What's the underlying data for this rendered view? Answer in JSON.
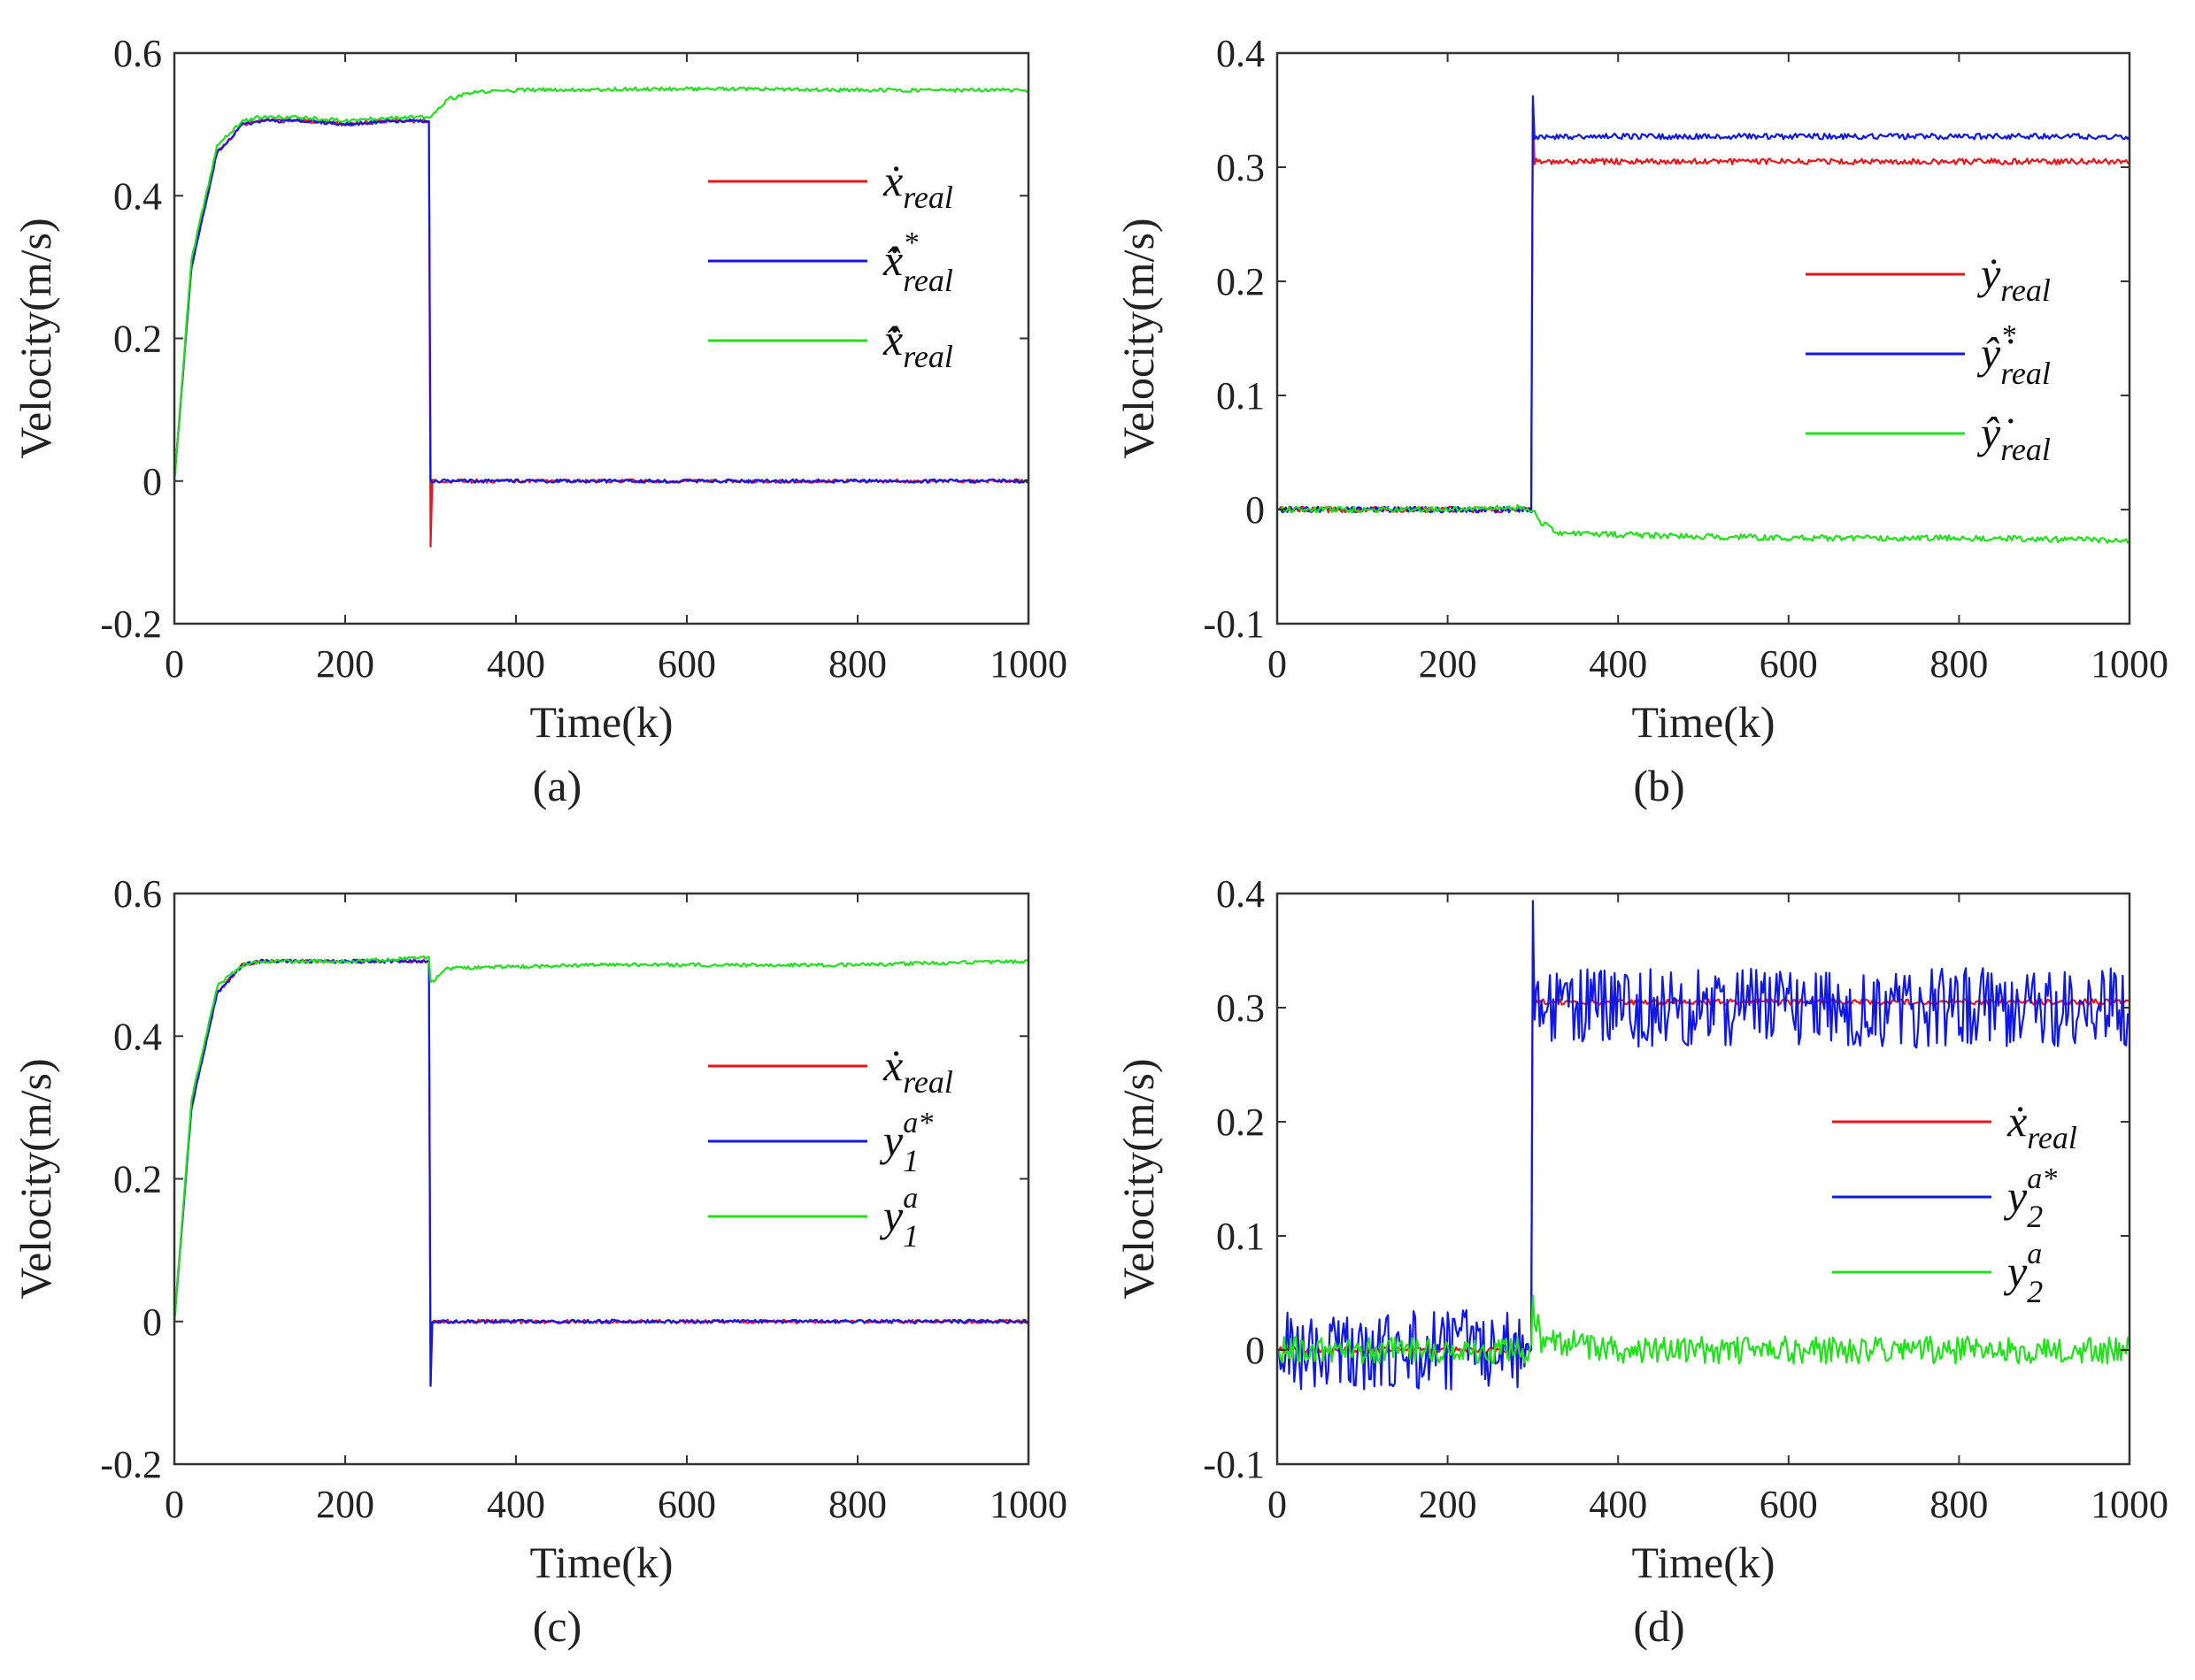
{
  "figure": {
    "panels": [
      {
        "id": "a",
        "caption": "(a)"
      },
      {
        "id": "b",
        "caption": "(b)"
      },
      {
        "id": "c",
        "caption": "(c)"
      },
      {
        "id": "d",
        "caption": "(d)"
      }
    ]
  },
  "chart_data": [
    {
      "type": "line",
      "panel": "(a)",
      "xlabel": "Time(k)",
      "ylabel": "Velocity(m/s)",
      "xlim": [
        0,
        1000
      ],
      "ylim": [
        -0.2,
        0.6
      ],
      "xticks": [
        0,
        200,
        400,
        600,
        800,
        1000
      ],
      "yticks": [
        -0.2,
        0,
        0.2,
        0.4,
        0.6
      ],
      "ytick_labels": [
        "-0.2",
        "0",
        "0.2",
        "0.4",
        "0.6"
      ],
      "legend_position": "right",
      "series": [
        {
          "name": "ẋreal",
          "legend": {
            "base": "ẋ",
            "sub": "real",
            "sup": ""
          },
          "color": "#e8161b",
          "x": [
            0,
            20,
            50,
            80,
            100,
            150,
            200,
            250,
            298,
            300,
            302,
            310,
            500,
            1000
          ],
          "y": [
            0.0,
            0.3,
            0.46,
            0.5,
            0.505,
            0.505,
            0.5,
            0.505,
            0.505,
            -0.09,
            0.0,
            0.0,
            0.0,
            0.0
          ]
        },
        {
          "name": "x̂̇*real",
          "legend": {
            "base": "x̂̇",
            "sub": "real",
            "sup": "*"
          },
          "color": "#1018e8",
          "x": [
            0,
            20,
            50,
            80,
            100,
            150,
            200,
            250,
            298,
            300,
            302,
            310,
            500,
            1000
          ],
          "y": [
            0.0,
            0.3,
            0.46,
            0.5,
            0.505,
            0.505,
            0.5,
            0.505,
            0.505,
            0.0,
            0.0,
            0.0,
            0.0,
            0.0
          ]
        },
        {
          "name": "x̂̇real",
          "legend": {
            "base": "x̂̇",
            "sub": "real",
            "sup": ""
          },
          "color": "#22e01c",
          "x": [
            0,
            20,
            50,
            80,
            100,
            150,
            200,
            250,
            300,
            320,
            350,
            400,
            600,
            800,
            1000
          ],
          "y": [
            0.0,
            0.31,
            0.47,
            0.505,
            0.51,
            0.51,
            0.505,
            0.51,
            0.51,
            0.535,
            0.545,
            0.548,
            0.55,
            0.548,
            0.548
          ]
        }
      ]
    },
    {
      "type": "line",
      "panel": "(b)",
      "xlabel": "Time(k)",
      "ylabel": "Velocity(m/s)",
      "xlim": [
        0,
        1000
      ],
      "ylim": [
        -0.1,
        0.4
      ],
      "xticks": [
        0,
        200,
        400,
        600,
        800,
        1000
      ],
      "yticks": [
        -0.1,
        0,
        0.1,
        0.2,
        0.3,
        0.4
      ],
      "ytick_labels": [
        "-0.1",
        "0",
        "0.1",
        "0.2",
        "0.3",
        "0.4"
      ],
      "legend_position": "right",
      "series": [
        {
          "name": "ẏreal",
          "legend": {
            "base": "ẏ",
            "sub": "real",
            "sup": ""
          },
          "color": "#e8161b",
          "x": [
            0,
            298,
            300,
            302,
            310,
            500,
            1000
          ],
          "y": [
            0.0,
            0.0,
            0.355,
            0.305,
            0.305,
            0.305,
            0.305
          ]
        },
        {
          "name": "ŷ̇*real",
          "legend": {
            "base": "ŷ̇",
            "sub": "real",
            "sup": "*"
          },
          "color": "#1018e8",
          "x": [
            0,
            298,
            300,
            302,
            310,
            500,
            1000
          ],
          "y": [
            0.0,
            0.0,
            0.36,
            0.325,
            0.327,
            0.327,
            0.327
          ]
        },
        {
          "name": "ŷ̇real",
          "legend": {
            "base": "ŷ̇",
            "sub": "real",
            "sup": ""
          },
          "color": "#22e01c",
          "x": [
            0,
            100,
            200,
            290,
            300,
            310,
            330,
            400,
            600,
            800,
            1000
          ],
          "y": [
            0.0,
            0.0,
            0.0,
            0.002,
            0.0,
            -0.012,
            -0.02,
            -0.022,
            -0.025,
            -0.025,
            -0.027
          ]
        }
      ]
    },
    {
      "type": "line",
      "panel": "(c)",
      "xlabel": "Time(k)",
      "ylabel": "Velocity(m/s)",
      "xlim": [
        0,
        1000
      ],
      "ylim": [
        -0.2,
        0.6
      ],
      "xticks": [
        0,
        200,
        400,
        600,
        800,
        1000
      ],
      "yticks": [
        -0.2,
        0,
        0.2,
        0.4,
        0.6
      ],
      "ytick_labels": [
        "-0.2",
        "0",
        "0.2",
        "0.4",
        "0.6"
      ],
      "legend_position": "right",
      "series": [
        {
          "name": "ẋreal",
          "legend": {
            "base": "ẋ",
            "sub": "real",
            "sup": ""
          },
          "color": "#e8161b",
          "x": [
            0,
            20,
            50,
            80,
            100,
            200,
            298,
            300,
            302,
            500,
            1000
          ],
          "y": [
            0.0,
            0.3,
            0.46,
            0.5,
            0.505,
            0.505,
            0.505,
            -0.09,
            0.0,
            0.0,
            0.0
          ]
        },
        {
          "name": "y1a*",
          "legend": {
            "base": "y",
            "sub": "1",
            "sup": "a*"
          },
          "color": "#1018e8",
          "x": [
            0,
            20,
            50,
            80,
            100,
            200,
            298,
            300,
            302,
            500,
            1000
          ],
          "y": [
            0.0,
            0.3,
            0.46,
            0.5,
            0.505,
            0.505,
            0.505,
            -0.09,
            0.0,
            0.0,
            0.0
          ]
        },
        {
          "name": "y1a",
          "legend": {
            "base": "y",
            "sub": "1",
            "sup": "a"
          },
          "color": "#22e01c",
          "x": [
            0,
            20,
            50,
            80,
            100,
            200,
            298,
            300,
            320,
            500,
            800,
            1000
          ],
          "y": [
            0.0,
            0.31,
            0.47,
            0.5,
            0.505,
            0.505,
            0.51,
            0.475,
            0.495,
            0.5,
            0.5,
            0.505
          ]
        }
      ]
    },
    {
      "type": "line",
      "panel": "(d)",
      "xlabel": "Time(k)",
      "ylabel": "Velocity(m/s)",
      "xlim": [
        0,
        1000
      ],
      "ylim": [
        -0.1,
        0.4
      ],
      "xticks": [
        0,
        200,
        400,
        600,
        800,
        1000
      ],
      "yticks": [
        -0.1,
        0,
        0.1,
        0.2,
        0.3,
        0.4
      ],
      "ytick_labels": [
        "-0.1",
        "0",
        "0.1",
        "0.2",
        "0.3",
        "0.4"
      ],
      "legend_position": "right",
      "series": [
        {
          "name": "ẋreal",
          "legend": {
            "base": "ẋ",
            "sub": "real",
            "sup": ""
          },
          "color": "#e8161b",
          "x": [
            0,
            298,
            300,
            302,
            500,
            1000
          ],
          "y": [
            0.0,
            0.0,
            0.36,
            0.305,
            0.305,
            0.305
          ]
        },
        {
          "name": "y2a*",
          "legend": {
            "base": "y",
            "sub": "2",
            "sup": "a*"
          },
          "color": "#1018e8",
          "x": [
            0,
            298,
            300,
            302,
            400,
            600,
            800,
            1000
          ],
          "y": [
            0.0,
            0.0,
            0.36,
            0.3,
            0.3,
            0.3,
            0.3,
            0.3
          ],
          "noise_amplitude": 0.035
        },
        {
          "name": "y2a",
          "legend": {
            "base": "y",
            "sub": "2",
            "sup": "a"
          },
          "color": "#22e01c",
          "x": [
            0,
            298,
            300,
            310,
            400,
            600,
            800,
            1000
          ],
          "y": [
            0.0,
            0.0,
            0.04,
            0.01,
            0.0,
            0.0,
            0.0,
            0.0
          ],
          "noise_amplitude": 0.012
        }
      ]
    }
  ]
}
